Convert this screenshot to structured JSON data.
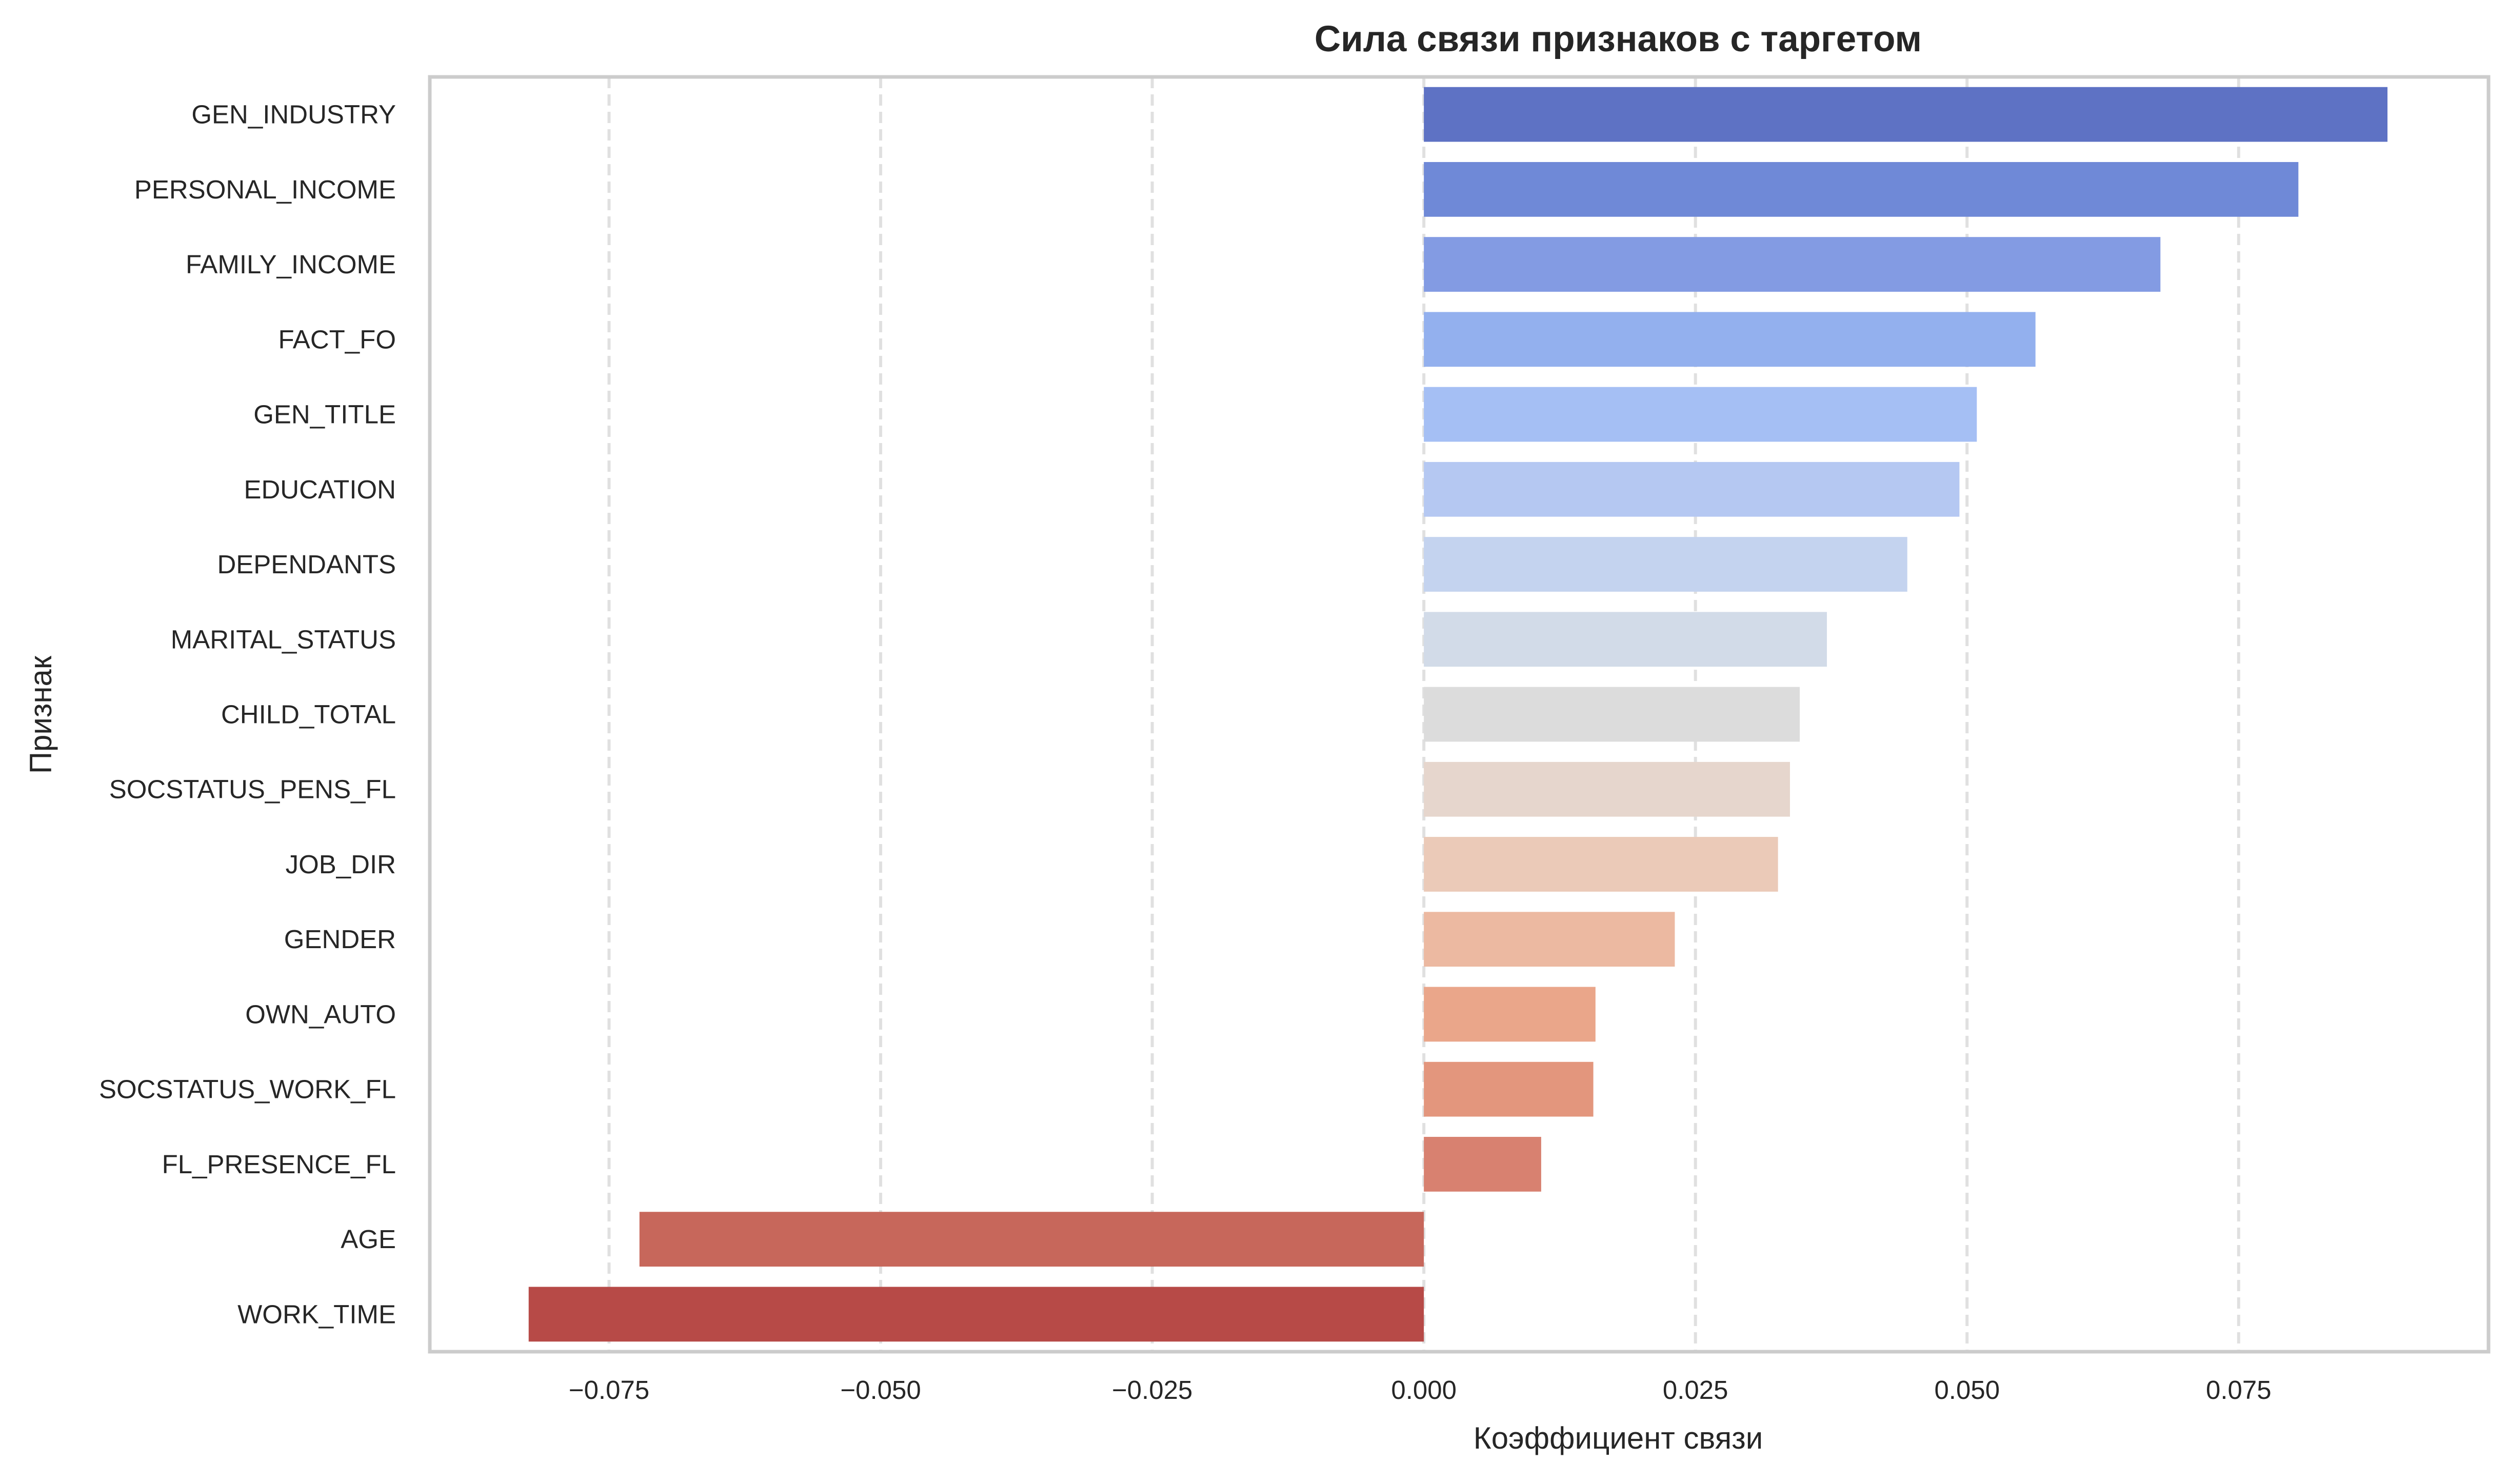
{
  "chart_data": {
    "type": "bar",
    "orientation": "horizontal",
    "title": "Сила связи признаков с таргетом",
    "xlabel": "Коэффициент связи",
    "ylabel": "Признак",
    "xlim": [
      -0.0915,
      0.098
    ],
    "x_ticks": [
      -0.075,
      -0.05,
      -0.025,
      0.0,
      0.025,
      0.05,
      0.075
    ],
    "x_tick_labels": [
      "−0.075",
      "−0.050",
      "−0.025",
      "0.000",
      "0.025",
      "0.050",
      "0.075"
    ],
    "grid": "vertical dashed",
    "palette": "coolwarm",
    "categories": [
      "GEN_INDUSTRY",
      "PERSONAL_INCOME",
      "FAMILY_INCOME",
      "FACT_FO",
      "GEN_TITLE",
      "EDUCATION",
      "DEPENDANTS",
      "MARITAL_STATUS",
      "CHILD_TOTAL",
      "SOCSTATUS_PENS_FL",
      "JOB_DIR",
      "GENDER",
      "OWN_AUTO",
      "SOCSTATUS_WORK_FL",
      "FL_PRESENCE_FL",
      "AGE",
      "WORK_TIME"
    ],
    "values": [
      0.0887,
      0.0805,
      0.0678,
      0.0563,
      0.0509,
      0.0493,
      0.0445,
      0.0371,
      0.0346,
      0.0337,
      0.0326,
      0.0231,
      0.0158,
      0.0156,
      0.0108,
      -0.0722,
      -0.0824
    ],
    "colors": [
      "#5e72c4",
      "#6f89d7",
      "#839be3",
      "#93b0ee",
      "#a5bff4",
      "#b5c8f2",
      "#c4d3ef",
      "#d2dbe8",
      "#dcdcdc",
      "#e6d6cd",
      "#ebcab8",
      "#ecb9a1",
      "#eaa68a",
      "#e3967d",
      "#d88170",
      "#c7675b",
      "#b74a47"
    ]
  }
}
